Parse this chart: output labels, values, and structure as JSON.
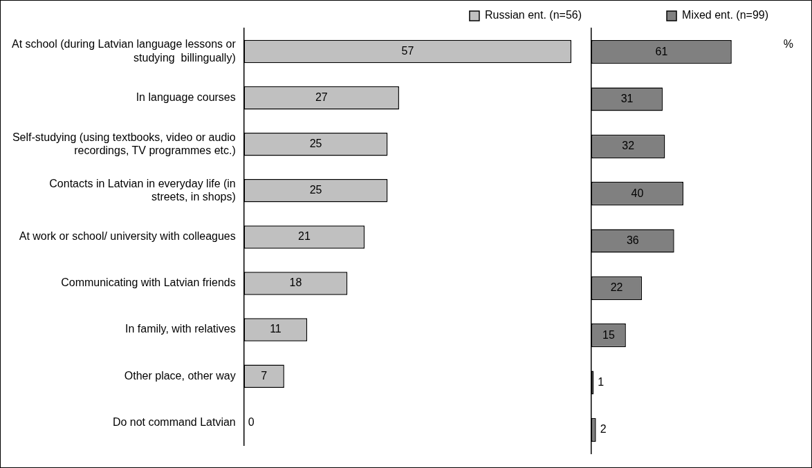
{
  "chart_data": [
    {
      "type": "bar",
      "orientation": "horizontal",
      "categories": [
        "At school (during Latvian language lessons or studying  billingually)",
        "In language courses",
        "Self-studying (using textbooks, video or audio recordings, TV programmes etc.)",
        "Contacts in Latvian in everyday life (in streets, in shops)",
        "At work or school/ university with colleagues",
        "Communicating with Latvian friends",
        "In family, with relatives",
        "Other place, other way",
        "Do not command Latvian"
      ],
      "series": [
        {
          "name": "Russian ent. (n=56)",
          "color": "#c0c0c0",
          "values": [
            57,
            27,
            25,
            25,
            21,
            18,
            11,
            7,
            0
          ]
        }
      ],
      "data_labels": true,
      "legend": "top right"
    },
    {
      "type": "bar",
      "orientation": "horizontal",
      "categories": [
        null,
        null,
        null,
        null,
        null,
        null,
        null,
        null,
        null
      ],
      "series": [
        {
          "name": "Mixed ent. (n=99)",
          "color": "#808080",
          "values": [
            61,
            31,
            32,
            40,
            36,
            22,
            15,
            1,
            2
          ]
        }
      ],
      "data_labels": true,
      "legend": "top right",
      "annotations": [
        "%"
      ]
    }
  ]
}
